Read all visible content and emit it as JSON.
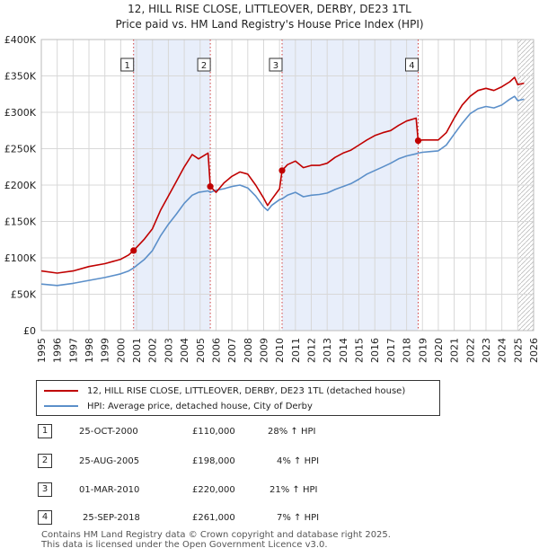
{
  "chart_data": {
    "type": "line",
    "title": "12, HILL RISE CLOSE, LITTLEOVER, DERBY, DE23 1TL",
    "subtitle": "Price paid vs. HM Land Registry's House Price Index (HPI)",
    "xlim": [
      1995,
      2026
    ],
    "ylim": [
      0,
      400000
    ],
    "y_ticks": [
      0,
      50000,
      100000,
      150000,
      200000,
      250000,
      300000,
      350000,
      400000
    ],
    "y_tick_labels": [
      "£0",
      "£50K",
      "£100K",
      "£150K",
      "£200K",
      "£250K",
      "£300K",
      "£350K",
      "£400K"
    ],
    "x_ticks": [
      1995,
      1996,
      1997,
      1998,
      1999,
      2000,
      2001,
      2002,
      2003,
      2004,
      2005,
      2006,
      2007,
      2008,
      2009,
      2010,
      2011,
      2012,
      2013,
      2014,
      2015,
      2016,
      2017,
      2018,
      2019,
      2020,
      2021,
      2022,
      2023,
      2024,
      2025,
      2026
    ],
    "x_tick_labels": [
      "1995",
      "1996",
      "1997",
      "1998",
      "1999",
      "2000",
      "2001",
      "2002",
      "2003",
      "2004",
      "2005",
      "2006",
      "2007",
      "2008",
      "2009",
      "2010",
      "2011",
      "2012",
      "2013",
      "2014",
      "2015",
      "2016",
      "2017",
      "2018",
      "2019",
      "2020",
      "2021",
      "2022",
      "2023",
      "2024",
      "2025",
      "2026"
    ],
    "grid": true,
    "hatch_from": 2025.0,
    "series": [
      {
        "name": "12, HILL RISE CLOSE, LITTLEOVER, DERBY, DE23 1TL (detached house)",
        "color": "#c00000",
        "x": [
          1995.0,
          1996.0,
          1997.0,
          1998.0,
          1999.0,
          2000.0,
          2000.5,
          2000.81,
          2001.5,
          2002.0,
          2002.5,
          2003.0,
          2003.5,
          2004.0,
          2004.5,
          2004.9,
          2005.5,
          2005.64,
          2006.0,
          2006.5,
          2007.0,
          2007.5,
          2008.0,
          2008.5,
          2009.0,
          2009.25,
          2009.5,
          2010.0,
          2010.16,
          2010.5,
          2011.0,
          2011.5,
          2012.0,
          2012.5,
          2013.0,
          2013.5,
          2014.0,
          2014.5,
          2015.0,
          2015.5,
          2016.0,
          2016.5,
          2017.0,
          2017.5,
          2018.0,
          2018.6,
          2018.73,
          2019.0,
          2019.5,
          2020.0,
          2020.5,
          2021.0,
          2021.5,
          2022.0,
          2022.5,
          2023.0,
          2023.5,
          2024.0,
          2024.5,
          2024.8,
          2025.0,
          2025.4
        ],
        "values": [
          82000,
          79000,
          82000,
          88000,
          92000,
          98000,
          104000,
          110000,
          126000,
          140000,
          165000,
          185000,
          205000,
          225000,
          242000,
          236000,
          244000,
          198000,
          190000,
          203000,
          212000,
          218000,
          215000,
          200000,
          182000,
          172000,
          180000,
          195000,
          220000,
          228000,
          233000,
          224000,
          227000,
          227000,
          230000,
          238000,
          244000,
          248000,
          255000,
          262000,
          268000,
          272000,
          275000,
          282000,
          288000,
          292000,
          261000,
          262000,
          262000,
          262000,
          272000,
          292000,
          310000,
          322000,
          330000,
          333000,
          330000,
          335000,
          342000,
          348000,
          338000,
          340000
        ]
      },
      {
        "name": "HPI: Average price, detached house, City of Derby",
        "color": "#5b8fc9",
        "x": [
          1995.0,
          1996.0,
          1997.0,
          1998.0,
          1999.0,
          2000.0,
          2000.5,
          2000.81,
          2001.5,
          2002.0,
          2002.5,
          2003.0,
          2003.5,
          2004.0,
          2004.5,
          2004.9,
          2005.5,
          2005.64,
          2006.0,
          2006.5,
          2007.0,
          2007.5,
          2008.0,
          2008.5,
          2009.0,
          2009.25,
          2009.5,
          2010.0,
          2010.16,
          2010.5,
          2011.0,
          2011.5,
          2012.0,
          2012.5,
          2013.0,
          2013.5,
          2014.0,
          2014.5,
          2015.0,
          2015.5,
          2016.0,
          2016.5,
          2017.0,
          2017.5,
          2018.0,
          2018.6,
          2018.73,
          2019.0,
          2019.5,
          2020.0,
          2020.5,
          2021.0,
          2021.5,
          2022.0,
          2022.5,
          2023.0,
          2023.5,
          2024.0,
          2024.5,
          2024.8,
          2025.0,
          2025.4
        ],
        "values": [
          64000,
          62000,
          65000,
          69000,
          73000,
          78000,
          82000,
          86000,
          98000,
          110000,
          130000,
          146000,
          160000,
          175000,
          186000,
          190000,
          192000,
          190000,
          193000,
          195000,
          198000,
          200000,
          196000,
          185000,
          170000,
          165000,
          172000,
          180000,
          181000,
          186000,
          190000,
          184000,
          186000,
          187000,
          189000,
          194000,
          198000,
          202000,
          208000,
          215000,
          220000,
          225000,
          230000,
          236000,
          240000,
          243000,
          244000,
          245000,
          246000,
          247000,
          255000,
          270000,
          285000,
          298000,
          305000,
          308000,
          306000,
          310000,
          318000,
          322000,
          316000,
          318000
        ]
      }
    ],
    "markers": [
      {
        "label": "1",
        "x": 2000.81,
        "y": 110000
      },
      {
        "label": "2",
        "x": 2005.64,
        "y": 198000
      },
      {
        "label": "3",
        "x": 2010.16,
        "y": 220000
      },
      {
        "label": "4",
        "x": 2018.73,
        "y": 261000
      }
    ],
    "shaded_ranges": [
      [
        2000.81,
        2005.64
      ],
      [
        2010.16,
        2018.73
      ]
    ]
  },
  "legend": {
    "property_label": "12, HILL RISE CLOSE, LITTLEOVER, DERBY, DE23 1TL (detached house)",
    "hpi_label": "HPI: Average price, detached house, City of Derby"
  },
  "sales": [
    {
      "num": "1",
      "date": "25-OCT-2000",
      "price": "£110,000",
      "hpi": "28% ↑ HPI"
    },
    {
      "num": "2",
      "date": "25-AUG-2005",
      "price": "£198,000",
      "hpi": "4% ↑ HPI"
    },
    {
      "num": "3",
      "date": "01-MAR-2010",
      "price": "£220,000",
      "hpi": "21% ↑ HPI"
    },
    {
      "num": "4",
      "date": "25-SEP-2018",
      "price": "£261,000",
      "hpi": "7% ↑ HPI"
    }
  ],
  "footer": {
    "line1": "Contains HM Land Registry data © Crown copyright and database right 2025.",
    "line2": "This data is licensed under the Open Government Licence v3.0."
  }
}
